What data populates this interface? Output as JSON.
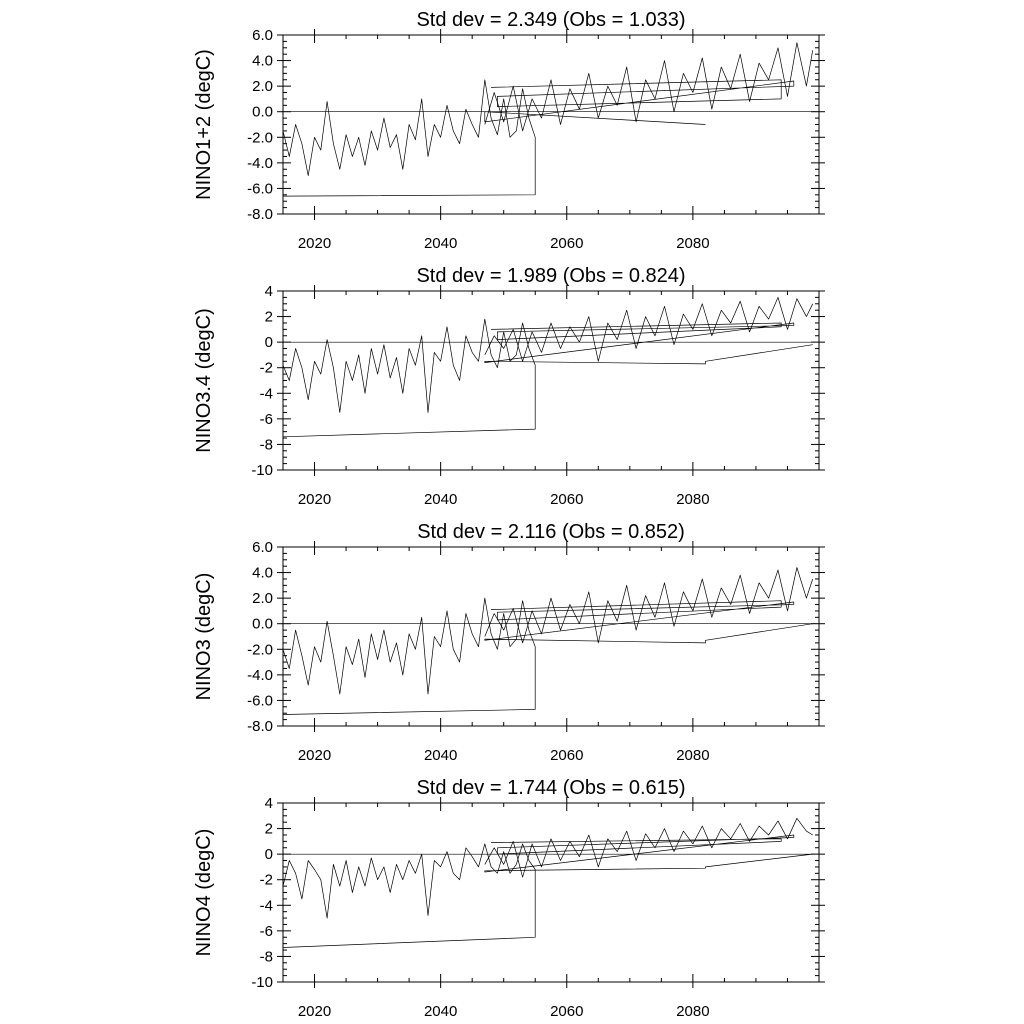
{
  "chart_data": [
    {
      "type": "line",
      "title": "Std dev = 2.349 (Obs = 1.033)",
      "ylabel": "NINO1+2 (degC)",
      "xlabel": "",
      "xlim": [
        2015,
        2100
      ],
      "ylim": [
        -8,
        6
      ],
      "x_ticks": [
        2020,
        2040,
        2060,
        2080
      ],
      "x_tick_labels": [
        "2020",
        "2040",
        "2060",
        "2080"
      ],
      "y_ticks": [
        -8,
        -6,
        -4,
        -2,
        0,
        2,
        4,
        6
      ],
      "y_tick_labels": [
        "-8.0",
        "-6.0",
        "-4.0",
        "-2.0",
        "0.0",
        "2.0",
        "4.0",
        "6.0"
      ],
      "zero_line": true,
      "series": [
        {
          "x": [
            2015.0,
            2016.0,
            2017.0,
            2018.0,
            2019.0,
            2020.0,
            2021.0,
            2022.0,
            2023.0,
            2024.0,
            2025.0,
            2026.0,
            2027.0,
            2028.0,
            2029.0,
            2030.0,
            2031.0,
            2032.0,
            2033.0,
            2034.0,
            2035.0,
            2036.0,
            2037.0,
            2038.0,
            2039.0,
            2040.0,
            2041.0,
            2042.0,
            2043.0,
            2044.0,
            2045.0,
            2046.0,
            2047.0,
            2048.0,
            2049.0,
            2050.0,
            2051.0,
            2052.0,
            2053.0,
            2054.0,
            2055.0,
            2055.0,
            2015.0,
            2015.0
          ],
          "y": [
            -1.5,
            -3.5,
            -1.0,
            -2.5,
            -5.0,
            -2.0,
            -3.0,
            0.8,
            -2.5,
            -4.5,
            -1.8,
            -3.5,
            -2.0,
            -4.2,
            -1.5,
            -3.0,
            -0.5,
            -2.8,
            -1.8,
            -4.5,
            -1.0,
            -2.2,
            1.0,
            -3.5,
            -1.0,
            -2.0,
            0.5,
            -1.5,
            -2.5,
            0.2,
            -1.0,
            -2.0,
            2.5,
            -0.5,
            -1.8,
            1.0,
            -2.0,
            -1.5,
            1.8,
            -0.5,
            -2.0,
            -6.5,
            -6.6,
            -1.5
          ]
        },
        {
          "x": [
            2047.0,
            2048.5,
            2050.0,
            2051.5,
            2053.0,
            2054.5,
            2056.0,
            2057.5,
            2059.0,
            2060.5,
            2062.0,
            2063.5,
            2065.0,
            2066.5,
            2068.0,
            2069.5,
            2071.0,
            2072.5,
            2074.0,
            2075.5,
            2077.0,
            2078.5,
            2080.0,
            2081.5,
            2083.0,
            2084.5,
            2086.0,
            2087.5,
            2089.0,
            2090.5,
            2092.0,
            2093.5,
            2095.0,
            2096.5,
            2098.0,
            2099.0
          ],
          "y": [
            -1.0,
            1.5,
            -0.8,
            2.0,
            -1.5,
            1.0,
            -0.5,
            2.5,
            -1.0,
            1.8,
            0.2,
            3.0,
            -0.5,
            2.0,
            0.5,
            3.5,
            -0.8,
            2.5,
            1.0,
            4.0,
            0.0,
            3.0,
            1.5,
            4.2,
            0.2,
            3.5,
            1.8,
            4.5,
            0.8,
            3.8,
            2.5,
            5.0,
            1.2,
            5.4,
            2.0,
            4.8
          ]
        },
        {
          "x": [
            2048.0,
            2094.0,
            2094.0,
            2049.0,
            2049.0,
            2096.0,
            2096.0,
            2047.0,
            2047.0,
            2082.0
          ],
          "y": [
            1.9,
            2.5,
            1.0,
            0.4,
            1.2,
            2.0,
            2.4,
            -0.8,
            0.0,
            -1.0
          ]
        }
      ]
    },
    {
      "type": "line",
      "title": "Std dev = 1.989 (Obs = 0.824)",
      "ylabel": "NINO3.4 (degC)",
      "xlabel": "",
      "xlim": [
        2015,
        2100
      ],
      "ylim": [
        -10,
        4
      ],
      "x_ticks": [
        2020,
        2040,
        2060,
        2080
      ],
      "x_tick_labels": [
        "2020",
        "2040",
        "2060",
        "2080"
      ],
      "y_ticks": [
        -10,
        -8,
        -6,
        -4,
        -2,
        0,
        2,
        4
      ],
      "y_tick_labels": [
        "-10",
        "-8",
        "-6",
        "-4",
        "-2",
        "0",
        "2",
        "4"
      ],
      "zero_line": true,
      "series": [
        {
          "x": [
            2015.0,
            2016.0,
            2017.0,
            2018.0,
            2019.0,
            2020.0,
            2021.0,
            2022.0,
            2023.0,
            2024.0,
            2025.0,
            2026.0,
            2027.0,
            2028.0,
            2029.0,
            2030.0,
            2031.0,
            2032.0,
            2033.0,
            2034.0,
            2035.0,
            2036.0,
            2037.0,
            2038.0,
            2039.0,
            2040.0,
            2041.0,
            2042.0,
            2043.0,
            2044.0,
            2045.0,
            2046.0,
            2047.0,
            2048.0,
            2049.0,
            2050.0,
            2051.0,
            2052.0,
            2053.0,
            2054.0,
            2055.0,
            2055.0,
            2015.0,
            2015.0
          ],
          "y": [
            -1.8,
            -3.0,
            -0.5,
            -2.0,
            -4.5,
            -1.5,
            -2.5,
            0.2,
            -2.0,
            -5.5,
            -1.5,
            -3.0,
            -1.0,
            -4.0,
            -0.5,
            -2.5,
            -0.2,
            -2.8,
            -1.2,
            -4.0,
            -0.5,
            -1.8,
            0.5,
            -5.5,
            -0.8,
            -1.5,
            1.2,
            -1.8,
            -3.0,
            0.5,
            -0.8,
            -1.5,
            1.8,
            -1.0,
            -2.0,
            0.8,
            -1.5,
            -1.0,
            1.5,
            -0.5,
            -1.8,
            -6.8,
            -7.4,
            -1.8
          ]
        },
        {
          "x": [
            2047.0,
            2048.5,
            2050.0,
            2051.5,
            2053.0,
            2054.5,
            2056.0,
            2057.5,
            2059.0,
            2060.5,
            2062.0,
            2063.5,
            2065.0,
            2066.5,
            2068.0,
            2069.5,
            2071.0,
            2072.5,
            2074.0,
            2075.5,
            2077.0,
            2078.5,
            2080.0,
            2081.5,
            2083.0,
            2084.5,
            2086.0,
            2087.5,
            2089.0,
            2090.5,
            2092.0,
            2093.5,
            2095.0,
            2096.5,
            2098.0,
            2099.0
          ],
          "y": [
            -1.0,
            0.5,
            -0.5,
            1.0,
            -1.5,
            0.8,
            -0.8,
            1.5,
            -0.5,
            1.2,
            0.0,
            2.0,
            -1.5,
            1.5,
            0.2,
            2.5,
            -0.5,
            2.0,
            0.5,
            2.8,
            -0.2,
            2.2,
            1.0,
            3.0,
            0.5,
            2.5,
            1.5,
            3.2,
            0.8,
            2.8,
            1.8,
            3.5,
            1.0,
            3.4,
            2.0,
            3.0
          ]
        },
        {
          "x": [
            2048.0,
            2094.0,
            2094.0,
            2049.0,
            2049.0,
            2096.0,
            2096.0,
            2047.0,
            2047.0,
            2082.0,
            2082.0,
            2099.0
          ],
          "y": [
            1.0,
            1.5,
            1.2,
            0.2,
            0.8,
            1.3,
            1.5,
            -1.6,
            -1.5,
            -1.7,
            -1.5,
            -0.2
          ]
        }
      ]
    },
    {
      "type": "line",
      "title": "Std dev = 2.116 (Obs = 0.852)",
      "ylabel": "NINO3 (degC)",
      "xlabel": "",
      "xlim": [
        2015,
        2100
      ],
      "ylim": [
        -8,
        6
      ],
      "x_ticks": [
        2020,
        2040,
        2060,
        2080
      ],
      "x_tick_labels": [
        "2020",
        "2040",
        "2060",
        "2080"
      ],
      "y_ticks": [
        -8,
        -6,
        -4,
        -2,
        0,
        2,
        4,
        6
      ],
      "y_tick_labels": [
        "-8.0",
        "-6.0",
        "-4.0",
        "-2.0",
        "0.0",
        "2.0",
        "4.0",
        "6.0"
      ],
      "zero_line": true,
      "series": [
        {
          "x": [
            2015.0,
            2016.0,
            2017.0,
            2018.0,
            2019.0,
            2020.0,
            2021.0,
            2022.0,
            2023.0,
            2024.0,
            2025.0,
            2026.0,
            2027.0,
            2028.0,
            2029.0,
            2030.0,
            2031.0,
            2032.0,
            2033.0,
            2034.0,
            2035.0,
            2036.0,
            2037.0,
            2038.0,
            2039.0,
            2040.0,
            2041.0,
            2042.0,
            2043.0,
            2044.0,
            2045.0,
            2046.0,
            2047.0,
            2048.0,
            2049.0,
            2050.0,
            2051.0,
            2052.0,
            2053.0,
            2054.0,
            2055.0,
            2055.0,
            2015.0,
            2015.0
          ],
          "y": [
            -2.0,
            -3.5,
            -0.5,
            -2.5,
            -4.8,
            -1.8,
            -3.0,
            0.2,
            -2.5,
            -5.5,
            -1.8,
            -3.2,
            -1.2,
            -4.2,
            -0.8,
            -2.8,
            -0.5,
            -3.0,
            -1.5,
            -4.0,
            -0.8,
            -2.0,
            0.5,
            -5.5,
            -1.0,
            -1.8,
            1.0,
            -2.0,
            -3.0,
            0.8,
            -0.8,
            -1.8,
            2.0,
            -0.8,
            -2.0,
            0.8,
            -1.8,
            -1.2,
            1.8,
            -0.5,
            -1.8,
            -6.7,
            -7.1,
            -2.0
          ]
        },
        {
          "x": [
            2047.0,
            2048.5,
            2050.0,
            2051.5,
            2053.0,
            2054.5,
            2056.0,
            2057.5,
            2059.0,
            2060.5,
            2062.0,
            2063.5,
            2065.0,
            2066.5,
            2068.0,
            2069.5,
            2071.0,
            2072.5,
            2074.0,
            2075.5,
            2077.0,
            2078.5,
            2080.0,
            2081.5,
            2083.0,
            2084.5,
            2086.0,
            2087.5,
            2089.0,
            2090.5,
            2092.0,
            2093.5,
            2095.0,
            2096.5,
            2098.0,
            2099.0
          ],
          "y": [
            -1.0,
            0.8,
            -0.5,
            1.2,
            -1.5,
            1.0,
            -0.8,
            2.0,
            -0.5,
            1.5,
            0.0,
            2.5,
            -1.5,
            1.8,
            0.2,
            3.0,
            -0.5,
            2.2,
            0.5,
            3.2,
            -0.2,
            2.5,
            1.0,
            3.5,
            0.5,
            2.8,
            1.5,
            3.8,
            0.8,
            3.2,
            2.0,
            4.2,
            1.0,
            4.4,
            2.0,
            3.5
          ]
        },
        {
          "x": [
            2048.0,
            2094.0,
            2094.0,
            2049.0,
            2049.0,
            2096.0,
            2096.0,
            2047.0,
            2047.0,
            2082.0,
            2082.0,
            2099.0
          ],
          "y": [
            1.1,
            1.8,
            1.3,
            0.3,
            0.9,
            1.5,
            1.7,
            -1.3,
            -1.2,
            -1.5,
            -1.3,
            0.0
          ]
        }
      ]
    },
    {
      "type": "line",
      "title": "Std dev = 1.744 (Obs = 0.615)",
      "ylabel": "NINO4 (degC)",
      "xlabel": "",
      "xlim": [
        2015,
        2100
      ],
      "ylim": [
        -10,
        4
      ],
      "x_ticks": [
        2020,
        2040,
        2060,
        2080
      ],
      "x_tick_labels": [
        "2020",
        "2040",
        "2060",
        "2080"
      ],
      "y_ticks": [
        -10,
        -8,
        -6,
        -4,
        -2,
        0,
        2,
        4
      ],
      "y_tick_labels": [
        "-10",
        "-8",
        "-6",
        "-4",
        "-2",
        "0",
        "2",
        "4"
      ],
      "zero_line": true,
      "series": [
        {
          "x": [
            2015.0,
            2016.0,
            2017.0,
            2018.0,
            2019.0,
            2020.0,
            2021.0,
            2022.0,
            2023.0,
            2024.0,
            2025.0,
            2026.0,
            2027.0,
            2028.0,
            2029.0,
            2030.0,
            2031.0,
            2032.0,
            2033.0,
            2034.0,
            2035.0,
            2036.0,
            2037.0,
            2038.0,
            2039.0,
            2040.0,
            2041.0,
            2042.0,
            2043.0,
            2044.0,
            2045.0,
            2046.0,
            2047.0,
            2048.0,
            2049.0,
            2050.0,
            2051.0,
            2052.0,
            2053.0,
            2054.0,
            2055.0,
            2055.0,
            2015.0,
            2015.0
          ],
          "y": [
            -2.5,
            -0.5,
            -1.5,
            -3.5,
            -0.5,
            -1.2,
            -2.0,
            -5.0,
            -0.8,
            -2.5,
            -0.5,
            -3.0,
            -1.0,
            -2.5,
            -0.3,
            -2.0,
            -1.0,
            -3.0,
            -0.8,
            -2.0,
            -0.5,
            -1.5,
            0.0,
            -4.8,
            -0.5,
            -1.0,
            0.2,
            -1.5,
            -2.0,
            0.5,
            -0.2,
            -1.0,
            0.8,
            -1.0,
            -1.5,
            0.2,
            -1.5,
            -0.8,
            0.8,
            -0.5,
            -1.2,
            -6.5,
            -7.3,
            -2.5
          ]
        },
        {
          "x": [
            2047.0,
            2048.5,
            2050.0,
            2051.5,
            2053.0,
            2054.5,
            2056.0,
            2057.5,
            2059.0,
            2060.5,
            2062.0,
            2063.5,
            2065.0,
            2066.5,
            2068.0,
            2069.5,
            2071.0,
            2072.5,
            2074.0,
            2075.5,
            2077.0,
            2078.5,
            2080.0,
            2081.5,
            2083.0,
            2084.5,
            2086.0,
            2087.5,
            2089.0,
            2090.5,
            2092.0,
            2093.5,
            2095.0,
            2096.5,
            2098.0,
            2099.0
          ],
          "y": [
            -0.8,
            0.5,
            -0.8,
            1.0,
            -1.8,
            0.8,
            -1.0,
            1.2,
            -0.5,
            1.0,
            -0.2,
            1.5,
            -1.0,
            1.2,
            0.2,
            1.8,
            -0.5,
            1.6,
            0.5,
            2.0,
            0.2,
            1.8,
            0.8,
            2.2,
            0.5,
            2.0,
            1.2,
            2.4,
            1.0,
            2.2,
            1.5,
            2.6,
            1.2,
            2.8,
            1.8,
            1.5
          ]
        },
        {
          "x": [
            2048.0,
            2094.0,
            2094.0,
            2049.0,
            2049.0,
            2096.0,
            2096.0,
            2047.0,
            2047.0,
            2082.0,
            2082.0,
            2099.0
          ],
          "y": [
            0.9,
            1.2,
            1.0,
            0.0,
            0.5,
            1.3,
            1.5,
            -1.4,
            -1.3,
            -1.1,
            -1.0,
            0.0
          ]
        }
      ]
    }
  ]
}
